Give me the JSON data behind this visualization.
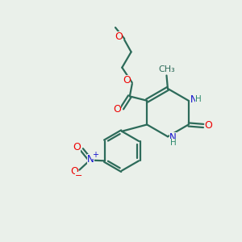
{
  "bg_color": "#eaf0ea",
  "bond_color": "#2d6b5a",
  "bond_width": 1.6,
  "O_color": "#ee0000",
  "N_color": "#1111cc",
  "H_color": "#2d8a6e",
  "C_color": "#2d6b5a",
  "figsize": [
    3.0,
    3.0
  ],
  "dpi": 100,
  "xlim": [
    0,
    10
  ],
  "ylim": [
    0,
    10
  ]
}
